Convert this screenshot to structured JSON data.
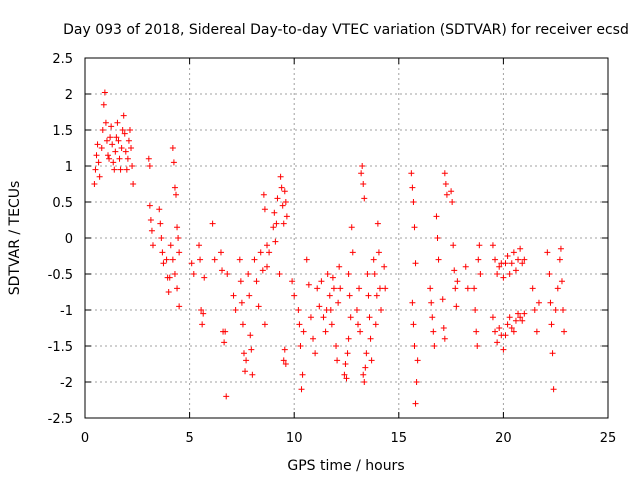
{
  "chart_data": {
    "type": "scatter",
    "title": "Day 093 of 2018, Sidereal Day-to-day VTEC variation (SDTVAR) for receiver ecsd",
    "xlabel": "GPS time / hours",
    "ylabel": "SDTVAR / TECUs",
    "xlim": [
      0,
      25
    ],
    "ylim": [
      -2.5,
      2.5
    ],
    "xticks": [
      0,
      5,
      10,
      15,
      20,
      25
    ],
    "xtick_labels": [
      "0",
      "5",
      "10",
      "15",
      "20",
      "25"
    ],
    "yticks": [
      -2.5,
      -2,
      -1.5,
      -1,
      -0.5,
      0,
      0.5,
      1,
      1.5,
      2,
      2.5
    ],
    "ytick_labels": [
      "-2.5",
      "-2",
      "-1.5",
      "-1",
      "-0.5",
      "0",
      "0.5",
      "1",
      "1.5",
      "2",
      "2.5"
    ],
    "grid": true,
    "legend": "none",
    "marker": "plus",
    "color": "#ff0000",
    "series": [
      {
        "points": [
          [
            0.45,
            0.75
          ],
          [
            0.5,
            0.95
          ],
          [
            0.55,
            1.15
          ],
          [
            0.6,
            1.3
          ],
          [
            0.65,
            1.05
          ],
          [
            0.7,
            0.85
          ],
          [
            0.8,
            1.25
          ],
          [
            0.85,
            1.5
          ],
          [
            0.9,
            1.85
          ],
          [
            0.95,
            2.02
          ],
          [
            1.0,
            1.6
          ],
          [
            1.05,
            1.35
          ],
          [
            1.1,
            1.15
          ],
          [
            1.15,
            1.1
          ],
          [
            1.2,
            1.4
          ],
          [
            1.25,
            1.55
          ],
          [
            1.3,
            1.3
          ],
          [
            1.35,
            1.05
          ],
          [
            1.4,
            0.95
          ],
          [
            1.45,
            1.2
          ],
          [
            1.5,
            1.4
          ],
          [
            1.55,
            1.6
          ],
          [
            1.6,
            1.35
          ],
          [
            1.65,
            1.1
          ],
          [
            1.7,
            0.95
          ],
          [
            1.75,
            1.25
          ],
          [
            1.8,
            1.5
          ],
          [
            1.85,
            1.7
          ],
          [
            1.9,
            1.45
          ],
          [
            1.95,
            1.2
          ],
          [
            2.0,
            0.95
          ],
          [
            2.05,
            1.1
          ],
          [
            2.1,
            1.35
          ],
          [
            2.15,
            1.5
          ],
          [
            2.2,
            1.25
          ],
          [
            2.25,
            1.0
          ],
          [
            2.3,
            0.75
          ],
          [
            3.05,
            1.1
          ],
          [
            3.1,
            1.0
          ],
          [
            3.1,
            0.45
          ],
          [
            3.15,
            0.25
          ],
          [
            3.2,
            0.1
          ],
          [
            3.25,
            -0.1
          ],
          [
            3.55,
            0.4
          ],
          [
            3.6,
            0.2
          ],
          [
            3.65,
            0.0
          ],
          [
            3.7,
            -0.2
          ],
          [
            3.75,
            -0.35
          ],
          [
            3.9,
            -0.3
          ],
          [
            3.95,
            -0.55
          ],
          [
            4.0,
            -0.75
          ],
          [
            4.05,
            -0.55
          ],
          [
            4.2,
            1.25
          ],
          [
            4.25,
            1.05
          ],
          [
            4.3,
            0.7
          ],
          [
            4.35,
            0.6
          ],
          [
            4.1,
            -0.1
          ],
          [
            4.2,
            -0.3
          ],
          [
            4.3,
            -0.5
          ],
          [
            4.4,
            -0.7
          ],
          [
            4.5,
            -0.95
          ],
          [
            4.4,
            0.15
          ],
          [
            4.45,
            0.0
          ],
          [
            4.5,
            -0.2
          ],
          [
            5.1,
            -0.35
          ],
          [
            5.2,
            -0.5
          ],
          [
            5.45,
            -0.1
          ],
          [
            5.5,
            -0.3
          ],
          [
            5.55,
            -1.0
          ],
          [
            5.6,
            -1.2
          ],
          [
            5.65,
            -1.05
          ],
          [
            5.7,
            -0.55
          ],
          [
            6.1,
            0.2
          ],
          [
            6.2,
            -0.3
          ],
          [
            6.5,
            -0.2
          ],
          [
            6.55,
            -0.45
          ],
          [
            6.6,
            -1.3
          ],
          [
            6.65,
            -1.45
          ],
          [
            6.7,
            -1.3
          ],
          [
            6.75,
            -2.2
          ],
          [
            6.8,
            -0.5
          ],
          [
            7.1,
            -0.8
          ],
          [
            7.2,
            -1.0
          ],
          [
            7.4,
            -0.3
          ],
          [
            7.45,
            -0.6
          ],
          [
            7.5,
            -0.9
          ],
          [
            7.55,
            -1.2
          ],
          [
            7.6,
            -1.6
          ],
          [
            7.65,
            -1.85
          ],
          [
            7.7,
            -1.7
          ],
          [
            7.8,
            -0.5
          ],
          [
            7.85,
            -0.8
          ],
          [
            7.9,
            -1.35
          ],
          [
            7.95,
            -1.55
          ],
          [
            8.0,
            -1.9
          ],
          [
            8.1,
            -0.3
          ],
          [
            8.2,
            -0.6
          ],
          [
            8.3,
            -0.95
          ],
          [
            8.4,
            -0.2
          ],
          [
            8.5,
            -0.45
          ],
          [
            8.6,
            -1.2
          ],
          [
            8.7,
            -0.4
          ],
          [
            8.8,
            -0.2
          ],
          [
            8.55,
            0.6
          ],
          [
            8.6,
            0.4
          ],
          [
            8.7,
            -0.1
          ],
          [
            9.0,
            0.15
          ],
          [
            9.05,
            0.35
          ],
          [
            9.1,
            -0.05
          ],
          [
            9.15,
            0.2
          ],
          [
            9.2,
            0.55
          ],
          [
            9.3,
            -0.5
          ],
          [
            9.35,
            0.85
          ],
          [
            9.4,
            0.7
          ],
          [
            9.45,
            0.45
          ],
          [
            9.5,
            0.2
          ],
          [
            9.55,
            0.65
          ],
          [
            9.6,
            0.5
          ],
          [
            9.65,
            0.3
          ],
          [
            9.5,
            -1.7
          ],
          [
            9.55,
            -1.55
          ],
          [
            9.6,
            -1.75
          ],
          [
            9.9,
            -0.6
          ],
          [
            10.0,
            -0.8
          ],
          [
            10.2,
            -1.0
          ],
          [
            10.25,
            -1.2
          ],
          [
            10.3,
            -1.5
          ],
          [
            10.35,
            -2.1
          ],
          [
            10.4,
            -1.9
          ],
          [
            10.45,
            -1.3
          ],
          [
            10.6,
            -0.3
          ],
          [
            10.7,
            -0.65
          ],
          [
            10.8,
            -1.1
          ],
          [
            10.9,
            -1.4
          ],
          [
            11.0,
            -1.6
          ],
          [
            11.1,
            -0.7
          ],
          [
            11.2,
            -0.95
          ],
          [
            11.3,
            -0.6
          ],
          [
            11.4,
            -1.1
          ],
          [
            11.5,
            -1.3
          ],
          [
            11.55,
            -1.0
          ],
          [
            11.6,
            -0.5
          ],
          [
            11.7,
            -0.8
          ],
          [
            11.75,
            -1.0
          ],
          [
            11.8,
            -1.2
          ],
          [
            11.85,
            -0.55
          ],
          [
            11.9,
            -0.7
          ],
          [
            12.0,
            -1.5
          ],
          [
            12.05,
            -1.7
          ],
          [
            12.1,
            -0.9
          ],
          [
            12.15,
            -0.4
          ],
          [
            12.2,
            -0.7
          ],
          [
            12.4,
            -1.9
          ],
          [
            12.45,
            -1.75
          ],
          [
            12.5,
            -1.95
          ],
          [
            12.55,
            -1.6
          ],
          [
            12.6,
            -1.4
          ],
          [
            12.6,
            -0.5
          ],
          [
            12.65,
            -0.8
          ],
          [
            12.7,
            -1.1
          ],
          [
            12.75,
            0.15
          ],
          [
            12.8,
            -0.2
          ],
          [
            13.0,
            -1.0
          ],
          [
            13.05,
            -1.2
          ],
          [
            13.1,
            -0.7
          ],
          [
            13.15,
            -1.3
          ],
          [
            13.2,
            0.9
          ],
          [
            13.25,
            1.0
          ],
          [
            13.3,
            0.75
          ],
          [
            13.35,
            0.55
          ],
          [
            13.3,
            -1.9
          ],
          [
            13.35,
            -2.0
          ],
          [
            13.4,
            -1.8
          ],
          [
            13.45,
            -1.6
          ],
          [
            13.5,
            -0.5
          ],
          [
            13.55,
            -0.8
          ],
          [
            13.6,
            -1.1
          ],
          [
            13.65,
            -1.4
          ],
          [
            13.7,
            -1.7
          ],
          [
            13.8,
            -0.3
          ],
          [
            13.85,
            -0.5
          ],
          [
            13.9,
            -1.2
          ],
          [
            13.95,
            -0.8
          ],
          [
            14.0,
            0.2
          ],
          [
            14.05,
            -0.2
          ],
          [
            14.1,
            -0.7
          ],
          [
            14.15,
            -1.0
          ],
          [
            14.3,
            -0.4
          ],
          [
            14.35,
            -0.7
          ],
          [
            15.6,
            0.9
          ],
          [
            15.65,
            0.7
          ],
          [
            15.7,
            0.5
          ],
          [
            15.75,
            0.15
          ],
          [
            15.8,
            -0.35
          ],
          [
            15.65,
            -0.9
          ],
          [
            15.7,
            -1.2
          ],
          [
            15.75,
            -1.5
          ],
          [
            15.8,
            -2.3
          ],
          [
            15.85,
            -2.0
          ],
          [
            15.9,
            -1.7
          ],
          [
            16.5,
            -0.7
          ],
          [
            16.55,
            -0.9
          ],
          [
            16.6,
            -1.1
          ],
          [
            16.65,
            -1.3
          ],
          [
            16.7,
            -1.5
          ],
          [
            16.8,
            0.3
          ],
          [
            16.85,
            0.0
          ],
          [
            16.9,
            -0.3
          ],
          [
            17.1,
            -0.85
          ],
          [
            17.15,
            -1.25
          ],
          [
            17.2,
            -1.4
          ],
          [
            17.2,
            0.9
          ],
          [
            17.25,
            0.75
          ],
          [
            17.3,
            0.6
          ],
          [
            17.5,
            0.65
          ],
          [
            17.55,
            0.5
          ],
          [
            17.6,
            -0.1
          ],
          [
            17.65,
            -0.45
          ],
          [
            17.7,
            -0.7
          ],
          [
            17.75,
            -0.95
          ],
          [
            17.8,
            -0.6
          ],
          [
            18.2,
            -0.4
          ],
          [
            18.3,
            -0.7
          ],
          [
            18.6,
            -0.7
          ],
          [
            18.65,
            -1.0
          ],
          [
            18.7,
            -1.3
          ],
          [
            18.75,
            -1.5
          ],
          [
            18.8,
            -0.3
          ],
          [
            18.85,
            -0.1
          ],
          [
            18.9,
            -0.5
          ],
          [
            19.5,
            -0.1
          ],
          [
            19.6,
            -0.3
          ],
          [
            19.7,
            -0.5
          ],
          [
            19.8,
            -0.4
          ],
          [
            19.9,
            -0.35
          ],
          [
            20.0,
            -0.55
          ],
          [
            20.1,
            -0.35
          ],
          [
            20.2,
            -0.25
          ],
          [
            20.3,
            -0.5
          ],
          [
            20.4,
            -0.35
          ],
          [
            20.5,
            -0.2
          ],
          [
            20.6,
            -0.45
          ],
          [
            20.7,
            -0.3
          ],
          [
            20.8,
            -0.15
          ],
          [
            20.9,
            -0.35
          ],
          [
            21.0,
            -0.3
          ],
          [
            19.5,
            -1.1
          ],
          [
            19.6,
            -1.3
          ],
          [
            19.7,
            -1.45
          ],
          [
            19.8,
            -1.25
          ],
          [
            19.9,
            -1.35
          ],
          [
            20.0,
            -1.55
          ],
          [
            20.1,
            -1.35
          ],
          [
            20.2,
            -1.2
          ],
          [
            20.3,
            -1.1
          ],
          [
            20.4,
            -1.25
          ],
          [
            20.5,
            -1.3
          ],
          [
            20.6,
            -1.15
          ],
          [
            20.7,
            -1.05
          ],
          [
            20.8,
            -1.1
          ],
          [
            20.9,
            -1.15
          ],
          [
            21.0,
            -1.05
          ],
          [
            21.4,
            -0.7
          ],
          [
            21.5,
            -1.0
          ],
          [
            21.6,
            -1.3
          ],
          [
            21.7,
            -0.9
          ],
          [
            22.1,
            -0.2
          ],
          [
            22.2,
            -0.5
          ],
          [
            22.25,
            -0.9
          ],
          [
            22.3,
            -1.2
          ],
          [
            22.35,
            -1.6
          ],
          [
            22.4,
            -2.1
          ],
          [
            22.5,
            -1.0
          ],
          [
            22.6,
            -0.7
          ],
          [
            22.7,
            -0.3
          ],
          [
            22.75,
            -0.15
          ],
          [
            22.8,
            -0.6
          ],
          [
            22.85,
            -1.0
          ],
          [
            22.9,
            -1.3
          ]
        ]
      }
    ]
  }
}
